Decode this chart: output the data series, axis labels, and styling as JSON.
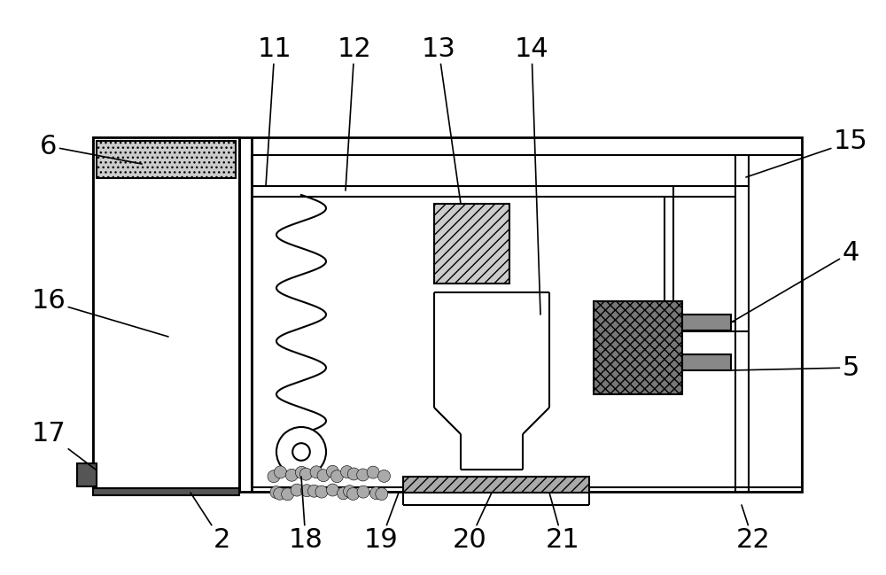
{
  "bg_color": "#ffffff",
  "line_color": "#000000",
  "label_fontsize": 22,
  "fig_width": 10.0,
  "fig_height": 6.49
}
